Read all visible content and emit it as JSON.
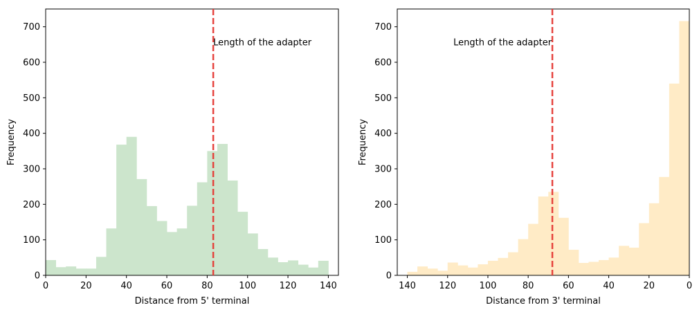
{
  "chart_data": [
    {
      "type": "bar",
      "subtype": "histogram",
      "bar_color": "#cce5cc",
      "bin_edges": [
        0,
        5,
        10,
        15,
        20,
        25,
        30,
        35,
        40,
        45,
        50,
        55,
        60,
        65,
        70,
        75,
        80,
        85,
        90,
        95,
        100,
        105,
        110,
        115,
        120,
        125,
        130,
        135,
        140
      ],
      "values": [
        43,
        23,
        25,
        19,
        19,
        52,
        132,
        368,
        390,
        271,
        195,
        153,
        122,
        132,
        196,
        262,
        350,
        370,
        267,
        179,
        118,
        74,
        50,
        37,
        42,
        30,
        22,
        41
      ],
      "xlabel": "Distance from 5' terminal",
      "ylabel": "Frequency",
      "xlim": [
        0,
        145
      ],
      "ylim": [
        0,
        750
      ],
      "x_reversed": false,
      "xticks": [
        0,
        20,
        40,
        60,
        80,
        100,
        120,
        140
      ],
      "yticks": [
        0,
        100,
        200,
        300,
        400,
        500,
        600,
        700
      ],
      "vline": {
        "x": 83,
        "color": "#e53935",
        "style": "dashed"
      },
      "annotation": {
        "text": "Length of the adapter",
        "x": 83,
        "y": 640,
        "anchor": "start"
      }
    },
    {
      "type": "bar",
      "subtype": "histogram",
      "bar_color": "#ffebc6",
      "bin_edges": [
        0,
        5,
        10,
        15,
        20,
        25,
        30,
        35,
        40,
        45,
        50,
        55,
        60,
        65,
        70,
        75,
        80,
        85,
        90,
        95,
        100,
        105,
        110,
        115,
        120,
        125,
        130,
        135,
        140
      ],
      "values": [
        716,
        540,
        277,
        203,
        147,
        78,
        83,
        50,
        43,
        38,
        35,
        72,
        162,
        235,
        222,
        145,
        102,
        65,
        49,
        41,
        31,
        22,
        28,
        36,
        13,
        19,
        25,
        10
      ],
      "xlabel": "Distance from 3' terminal",
      "ylabel": "Frequency",
      "xlim": [
        145,
        0
      ],
      "ylim": [
        0,
        750
      ],
      "x_reversed": true,
      "xticks": [
        140,
        120,
        100,
        80,
        60,
        40,
        20,
        0
      ],
      "yticks": [
        0,
        100,
        200,
        300,
        400,
        500,
        600,
        700
      ],
      "vline": {
        "x": 68,
        "color": "#e53935",
        "style": "dashed"
      },
      "annotation": {
        "text": "Length of the adapter",
        "x": 68,
        "y": 640,
        "anchor": "end"
      }
    }
  ]
}
